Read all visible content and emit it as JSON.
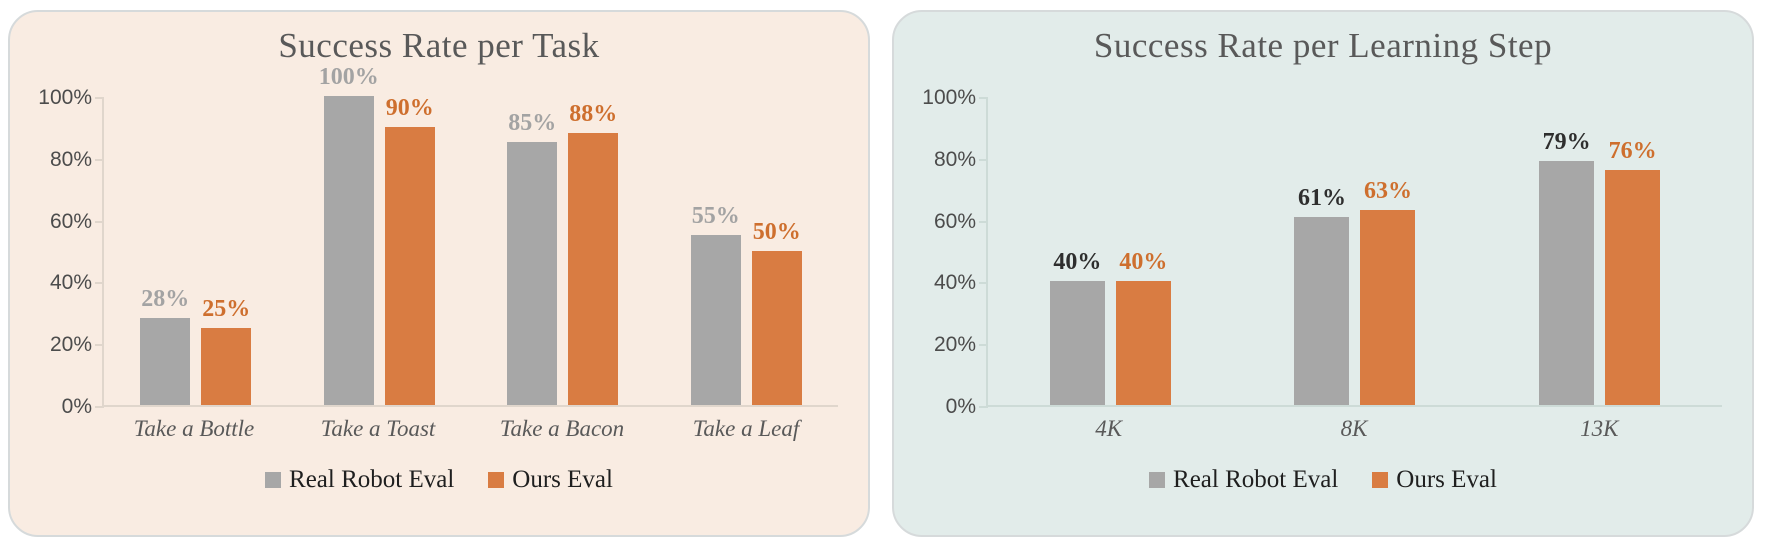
{
  "page": {
    "background": "#ffffff"
  },
  "chart_data": [
    {
      "type": "bar",
      "title": "Success Rate per Task",
      "panel_background": "#f9ece2",
      "categories": [
        "Take a Bottle",
        "Take a Toast",
        "Take a Bacon",
        "Take a Leaf"
      ],
      "series": [
        {
          "name": "Real Robot Eval",
          "color": "#a7a7a7",
          "label_color": "#a3a3a3",
          "values": [
            28,
            100,
            85,
            55
          ],
          "labels": [
            "28%",
            "100%",
            "85%",
            "55%"
          ]
        },
        {
          "name": "Ours Eval",
          "color": "#d97c42",
          "label_color": "#ce6f2e",
          "values": [
            25,
            90,
            88,
            50
          ],
          "labels": [
            "25%",
            "90%",
            "88%",
            "50%"
          ]
        }
      ],
      "y_axis": {
        "ticks": [
          {
            "label": "100%",
            "value": 100
          },
          {
            "label": "80%",
            "value": 80
          },
          {
            "label": "60%",
            "value": 60
          },
          {
            "label": "40%",
            "value": 40
          },
          {
            "label": "20%",
            "value": 20
          },
          {
            "label": "0%",
            "value": 0
          }
        ],
        "ylim": [
          0,
          100
        ]
      },
      "xlabel": "",
      "ylabel": "",
      "grid": false,
      "legend_position": "bottom"
    },
    {
      "type": "bar",
      "title": "Success Rate per Learning Step",
      "panel_background": "#e2ecea",
      "categories": [
        "4K",
        "8K",
        "13K"
      ],
      "series": [
        {
          "name": "Real Robot Eval",
          "color": "#a7a7a7",
          "label_color": "#2e2e2e",
          "values": [
            40,
            61,
            79
          ],
          "labels": [
            "40%",
            "61%",
            "79%"
          ]
        },
        {
          "name": "Ours Eval",
          "color": "#d97c42",
          "label_color": "#ce6f2e",
          "values": [
            40,
            63,
            76
          ],
          "labels": [
            "40%",
            "63%",
            "76%"
          ]
        }
      ],
      "y_axis": {
        "ticks": [
          {
            "label": "100%",
            "value": 100
          },
          {
            "label": "80%",
            "value": 80
          },
          {
            "label": "60%",
            "value": 60
          },
          {
            "label": "40%",
            "value": 40
          },
          {
            "label": "20%",
            "value": 20
          },
          {
            "label": "0%",
            "value": 0
          }
        ],
        "ylim": [
          0,
          100
        ]
      },
      "xlabel": "",
      "ylabel": "",
      "grid": false,
      "legend_position": "bottom"
    }
  ]
}
